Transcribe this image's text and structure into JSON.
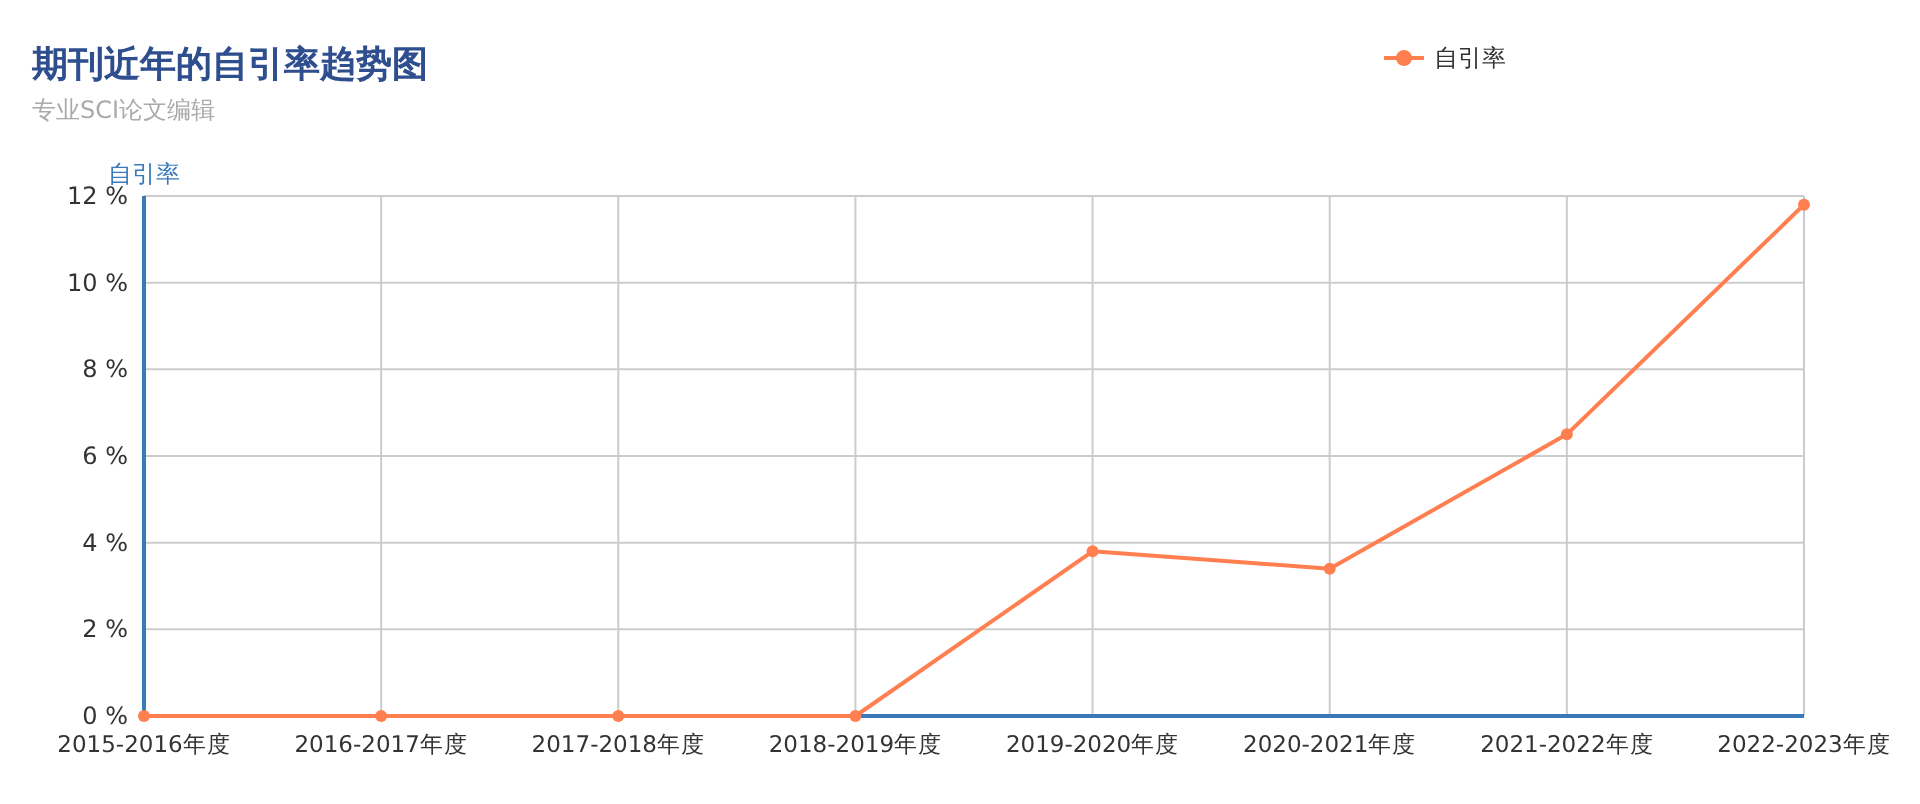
{
  "chart_data": {
    "type": "line",
    "title": "期刊近年的自引率趋势图",
    "subtitle": "专业SCI论文编辑",
    "ylabel": "自引率",
    "categories": [
      "2015-2016年度",
      "2016-2017年度",
      "2017-2018年度",
      "2018-2019年度",
      "2019-2020年度",
      "2020-2021年度",
      "2021-2022年度",
      "2022-2023年度"
    ],
    "series": [
      {
        "name": "自引率",
        "color": "#ff7f50",
        "values": [
          0,
          0,
          0,
          0,
          3.8,
          3.4,
          6.5,
          11.8
        ]
      }
    ],
    "ylim": [
      0,
      12
    ],
    "yticks": [
      {
        "value": 0,
        "label": "0 %"
      },
      {
        "value": 2,
        "label": "2 %"
      },
      {
        "value": 4,
        "label": "4 %"
      },
      {
        "value": 6,
        "label": "6 %"
      },
      {
        "value": 8,
        "label": "8 %"
      },
      {
        "value": 10,
        "label": "10 %"
      },
      {
        "value": 12,
        "label": "12 %"
      }
    ],
    "grid": true,
    "legend": "top right",
    "marker": "circle",
    "line_style": "solid"
  }
}
